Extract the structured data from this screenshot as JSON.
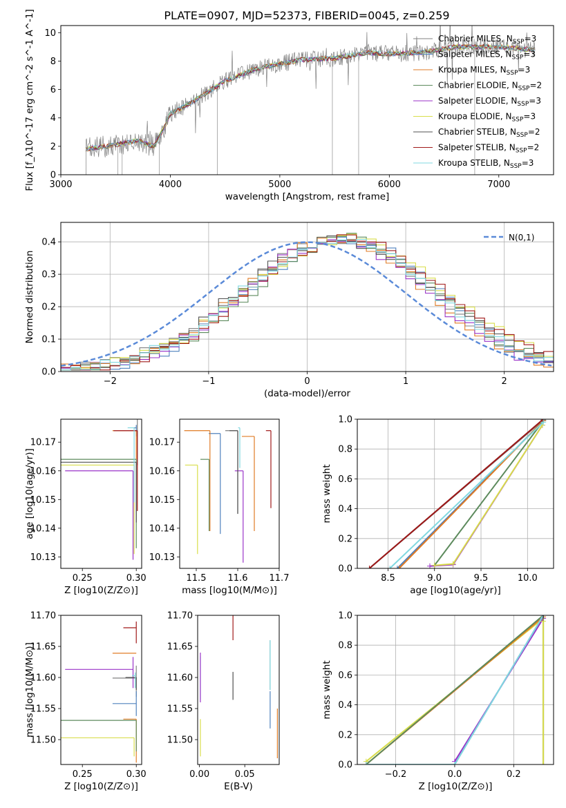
{
  "figure": {
    "title": "PLATE=0907, MJD=52373, FIBERID=0045, z=0.259"
  },
  "colors": {
    "Chabrier MILES": "#808080",
    "Salpeter MILES": "#4f81bd",
    "Kroupa MILES": "#e07b24",
    "Chabrier ELODIE": "#5c8a5c",
    "Salpeter ELODIE": "#9a32c8",
    "Kroupa ELODIE": "#d8dd4a",
    "Chabrier STELIB": "#505050",
    "Salpeter STELIB": "#a01818",
    "Kroupa STELIB": "#80d8e0",
    "gauss": "#5a8ad8"
  },
  "chart_data": [
    {
      "id": "spectrum",
      "type": "line",
      "xlabel": "wavelength [Angstrom, rest frame]",
      "ylabel": "Flux [f_λ10^-17 erg cm^-2 s^-1 A^-1]",
      "xlim": [
        3000,
        7500
      ],
      "ylim": [
        0,
        10.5
      ],
      "xticks": [
        3000,
        4000,
        5000,
        6000,
        7000
      ],
      "yticks": [
        0,
        2,
        4,
        6,
        8,
        10
      ],
      "legend_position": "top-right",
      "series": [
        {
          "name": "Chabrier MILES, N_SSP=3"
        },
        {
          "name": "Salpeter MILES, N_SSP=3"
        },
        {
          "name": "Kroupa MILES, N_SSP=3"
        },
        {
          "name": "Chabrier ELODIE, N_SSP=2"
        },
        {
          "name": "Salpeter ELODIE, N_SSP=3"
        },
        {
          "name": "Kroupa ELODIE, N_SSP=3"
        },
        {
          "name": "Chabrier STELIB, N_SSP=2"
        },
        {
          "name": "Salpeter STELIB, N_SSP=2"
        },
        {
          "name": "Kroupa STELIB, N_SSP=3"
        }
      ],
      "continuum": [
        [
          3230,
          1.8
        ],
        [
          3500,
          2.1
        ],
        [
          3700,
          2.4
        ],
        [
          3850,
          2.0
        ],
        [
          3950,
          3.4
        ],
        [
          4000,
          4.3
        ],
        [
          4200,
          5.1
        ],
        [
          4500,
          6.6
        ],
        [
          4800,
          7.5
        ],
        [
          5000,
          7.8
        ],
        [
          5200,
          8.1
        ],
        [
          5500,
          8.2
        ],
        [
          5800,
          8.6
        ],
        [
          6000,
          8.5
        ],
        [
          6300,
          8.6
        ],
        [
          6600,
          9.0
        ],
        [
          7000,
          9.0
        ],
        [
          7300,
          8.8
        ]
      ]
    },
    {
      "id": "residuals",
      "type": "line",
      "xlabel": "(data-model)/error",
      "ylabel": "Normed distribution",
      "xlim": [
        -2.5,
        2.5
      ],
      "ylim": [
        0,
        0.46
      ],
      "xticks": [
        -2,
        -1,
        0,
        1,
        2
      ],
      "yticks": [
        0.0,
        0.1,
        0.2,
        0.3,
        0.4
      ],
      "legend": "N(0,1)",
      "legend_position": "top-right",
      "grid": true
    },
    {
      "id": "age-vs-Z",
      "type": "scatter",
      "xlabel": "Z [log10(Z/Z⊙)]",
      "ylabel": "age [log10(age/yr)]",
      "xlim": [
        0.23,
        0.305
      ],
      "ylim": [
        10.126,
        10.178
      ],
      "xticks": [
        0.25,
        0.3
      ],
      "yticks": [
        10.13,
        10.14,
        10.15,
        10.16,
        10.17
      ],
      "points": [
        {
          "series": "Chabrier MILES",
          "x": 0.301,
          "y": 10.174,
          "xerr": [
            0.002,
            0.0
          ],
          "yerr": [
            0.012,
            0.004
          ]
        },
        {
          "series": "Salpeter MILES",
          "x": 0.3,
          "y": 10.175,
          "xerr": [
            0.002,
            0.0
          ],
          "yerr": [
            0.003,
            0.001
          ]
        },
        {
          "series": "Kroupa MILES",
          "x": 0.3,
          "y": 10.174,
          "xerr": [
            0.022,
            0.0
          ],
          "yerr": [
            0.01,
            0.0
          ]
        },
        {
          "series": "Chabrier ELODIE",
          "x": 0.3,
          "y": 10.164,
          "xerr": [
            0.07,
            0.0
          ],
          "yerr": [
            0.031,
            0.0
          ]
        },
        {
          "series": "Salpeter ELODIE",
          "x": 0.297,
          "y": 10.16,
          "xerr": [
            0.063,
            0.0
          ],
          "yerr": [
            0.031,
            0.0
          ]
        },
        {
          "series": "Kroupa ELODIE",
          "x": 0.298,
          "y": 10.162,
          "xerr": [
            0.07,
            0.0
          ],
          "yerr": [
            0.031,
            0.0
          ]
        },
        {
          "series": "Chabrier STELIB",
          "x": 0.3,
          "y": 10.163,
          "xerr": [
            0.07,
            0.0
          ],
          "yerr": [
            0.021,
            0.0
          ]
        },
        {
          "series": "Salpeter STELIB",
          "x": 0.301,
          "y": 10.174,
          "xerr": [
            0.022,
            0.0
          ],
          "yerr": [
            0.028,
            0.0
          ]
        },
        {
          "series": "Kroupa STELIB",
          "x": 0.298,
          "y": 10.175,
          "xerr": [
            0.006,
            0.0
          ],
          "yerr": [
            0.026,
            0.0
          ]
        }
      ]
    },
    {
      "id": "age-vs-mass",
      "type": "scatter",
      "xlabel": "mass [log10(M/M⊙)]",
      "ylabel": "",
      "xlim": [
        11.46,
        11.7
      ],
      "ylim": [
        10.126,
        10.178
      ],
      "xticks": [
        11.5,
        11.6,
        11.7
      ],
      "yticks": [
        10.13,
        10.14,
        10.15,
        10.16,
        10.17
      ],
      "points": [
        {
          "series": "Chabrier MILES",
          "x": 11.6,
          "y": 10.174,
          "xerr": [
            0.03,
            0.0
          ],
          "yerr": [
            0.029,
            0.0
          ]
        },
        {
          "series": "Salpeter MILES",
          "x": 11.558,
          "y": 10.173,
          "xerr": [
            0.028,
            0.0
          ],
          "yerr": [
            0.035,
            0.0
          ]
        },
        {
          "series": "Kroupa MILES",
          "x": 11.533,
          "y": 10.174,
          "xerr": [
            0.062,
            0.0
          ],
          "yerr": [
            0.035,
            0.0
          ]
        },
        {
          "series": "Chabrier ELODIE",
          "x": 11.531,
          "y": 10.164,
          "xerr": [
            0.021,
            0.0
          ],
          "yerr": [
            0.025,
            0.0
          ]
        },
        {
          "series": "Salpeter ELODIE",
          "x": 11.613,
          "y": 10.16,
          "xerr": [
            0.02,
            0.0
          ],
          "yerr": [
            0.032,
            0.0
          ]
        },
        {
          "series": "Kroupa ELODIE",
          "x": 11.503,
          "y": 10.162,
          "xerr": [
            0.03,
            0.0
          ],
          "yerr": [
            0.031,
            0.0
          ]
        },
        {
          "series": "Chabrier STELIB",
          "x": 11.6,
          "y": 10.174,
          "xerr": [
            0.02,
            0.0
          ],
          "yerr": [
            0.029,
            0.0
          ]
        },
        {
          "series": "Salpeter STELIB",
          "x": 11.68,
          "y": 10.174,
          "xerr": [
            0.012,
            0.0
          ],
          "yerr": [
            0.027,
            0.0
          ]
        },
        {
          "series": "Kroupa STELIB",
          "x": 11.605,
          "y": 10.175,
          "xerr": [
            0.004,
            0.0
          ],
          "yerr": [
            0.014,
            0.0
          ]
        },
        {
          "series": "Kroupa MILES",
          "x": 11.64,
          "y": 10.172,
          "xerr": [
            0.03,
            0.0
          ],
          "yerr": [
            0.033,
            0.0
          ]
        }
      ]
    },
    {
      "id": "mass-weight-vs-age",
      "type": "line",
      "xlabel": "age [log10(age/yr)]",
      "ylabel": "mass weight",
      "xlim": [
        8.17,
        10.28
      ],
      "ylim": [
        0,
        1.0
      ],
      "xticks": [
        8.5,
        9.0,
        9.5,
        10.0
      ],
      "yticks": [
        0.0,
        0.2,
        0.4,
        0.6,
        0.8,
        1.0
      ],
      "grid": true,
      "series": [
        {
          "key": "Chabrier MILES",
          "x": [
            8.3,
            10.17
          ],
          "y": [
            0.0,
            0.995
          ]
        },
        {
          "key": "Salpeter MILES",
          "x": [
            8.6,
            10.17
          ],
          "y": [
            0.0,
            0.99
          ]
        },
        {
          "key": "Kroupa MILES",
          "x": [
            8.62,
            10.17
          ],
          "y": [
            0.0,
            0.99
          ]
        },
        {
          "key": "Chabrier ELODIE",
          "x": [
            9.0,
            10.16
          ],
          "y": [
            0.02,
            0.98
          ]
        },
        {
          "key": "Salpeter ELODIE",
          "x": [
            8.95,
            9.2,
            10.16
          ],
          "y": [
            0.015,
            0.025,
            0.96
          ]
        },
        {
          "key": "Kroupa ELODIE",
          "x": [
            9.0,
            9.2,
            10.16
          ],
          "y": [
            0.02,
            0.03,
            0.96
          ]
        },
        {
          "key": "Chabrier STELIB",
          "x": [
            8.3,
            10.17
          ],
          "y": [
            0.0,
            1.0
          ]
        },
        {
          "key": "Salpeter STELIB",
          "x": [
            8.3,
            10.17
          ],
          "y": [
            0.0,
            1.0
          ]
        },
        {
          "key": "Kroupa STELIB",
          "x": [
            8.52,
            10.17
          ],
          "y": [
            0.0,
            0.98
          ]
        }
      ]
    },
    {
      "id": "mass-vs-Z",
      "type": "scatter",
      "xlabel": "Z [log10(Z/Z⊙)]",
      "ylabel": "mass [log10(M/M⊙)]",
      "xlim": [
        0.23,
        0.305
      ],
      "ylim": [
        11.46,
        11.7
      ],
      "xticks": [
        0.25,
        0.3
      ],
      "yticks": [
        11.5,
        11.55,
        11.6,
        11.65,
        11.7
      ],
      "points": [
        {
          "series": "Chabrier MILES",
          "x": 0.3,
          "y": 11.599,
          "xerr": [
            0.022,
            0.0
          ],
          "yerr": [
            0.03,
            0.02
          ]
        },
        {
          "series": "Salpeter MILES",
          "x": 0.3,
          "y": 11.558,
          "xerr": [
            0.022,
            0.0
          ],
          "yerr": [
            0.02,
            0.02
          ]
        },
        {
          "series": "Kroupa MILES",
          "x": 0.3,
          "y": 11.533,
          "xerr": [
            0.012,
            0.0
          ],
          "yerr": [
            0.07,
            0.0
          ]
        },
        {
          "series": "Chabrier ELODIE",
          "x": 0.3,
          "y": 11.531,
          "xerr": [
            0.07,
            0.0
          ],
          "yerr": [
            0.05,
            0.0
          ]
        },
        {
          "series": "Salpeter ELODIE",
          "x": 0.297,
          "y": 11.613,
          "xerr": [
            0.063,
            0.0
          ],
          "yerr": [
            0.03,
            0.02
          ]
        },
        {
          "series": "Kroupa ELODIE",
          "x": 0.298,
          "y": 11.503,
          "xerr": [
            0.07,
            0.0
          ],
          "yerr": [
            0.03,
            0.0
          ]
        },
        {
          "series": "Chabrier STELIB",
          "x": 0.3,
          "y": 11.6,
          "xerr": [
            0.01,
            0.0
          ],
          "yerr": [
            0.02,
            0.0
          ]
        },
        {
          "series": "Salpeter STELIB",
          "x": 0.3,
          "y": 11.68,
          "xerr": [
            0.012,
            0.0
          ],
          "yerr": [
            0.025,
            0.01
          ]
        },
        {
          "series": "Kroupa STELIB",
          "x": 0.299,
          "y": 11.603,
          "xerr": [
            0.003,
            0.0
          ],
          "yerr": [
            0.02,
            0.005
          ]
        },
        {
          "series": "Kroupa MILES",
          "x": 0.3,
          "y": 11.639,
          "xerr": [
            0.022,
            0.0
          ],
          "yerr": [
            0.0,
            0.0
          ]
        }
      ]
    },
    {
      "id": "mass-vs-EBV",
      "type": "scatter",
      "xlabel": "E(B-V)",
      "ylabel": "",
      "xlim": [
        -0.002,
        0.088
      ],
      "ylim": [
        11.46,
        11.7
      ],
      "xticks": [
        0.0,
        0.05
      ],
      "yticks": [
        11.5,
        11.55,
        11.6,
        11.65,
        11.7
      ],
      "points": [
        {
          "series": "Kroupa STELIB",
          "x": 0.001,
          "y": 11.599,
          "yerr": [
            0.035,
            0.035
          ]
        },
        {
          "series": "Salpeter ELODIE",
          "x": 0.001,
          "y": 11.61,
          "yerr": [
            0.05,
            0.03
          ]
        },
        {
          "series": "Kroupa ELODIE",
          "x": 0.001,
          "y": 11.503,
          "yerr": [
            0.03,
            0.03
          ]
        },
        {
          "series": "Salpeter STELIB",
          "x": 0.037,
          "y": 11.68,
          "yerr": [
            0.02,
            0.02
          ]
        },
        {
          "series": "Chabrier STELIB",
          "x": 0.037,
          "y": 11.589,
          "yerr": [
            0.025,
            0.02
          ]
        },
        {
          "series": "Salpeter MILES",
          "x": 0.078,
          "y": 11.548,
          "yerr": [
            0.03,
            0.03
          ]
        },
        {
          "series": "Kroupa MILES",
          "x": 0.086,
          "y": 11.51,
          "yerr": [
            0.04,
            0.04
          ]
        },
        {
          "series": "Chabrier MILES",
          "x": 0.078,
          "y": 11.62,
          "yerr": [
            0.04,
            0.04
          ]
        },
        {
          "series": "Kroupa STELIB",
          "x": 0.078,
          "y": 11.62,
          "yerr": [
            0.04,
            0.04
          ]
        }
      ]
    },
    {
      "id": "mass-weight-vs-Z",
      "type": "line",
      "xlabel": "Z [log10(Z/Z⊙)]",
      "ylabel": "mass weight",
      "xlim": [
        -0.33,
        0.335
      ],
      "ylim": [
        0,
        1.0
      ],
      "xticks": [
        -0.2,
        0.0,
        0.2
      ],
      "yticks": [
        0.0,
        0.2,
        0.4,
        0.6,
        0.8,
        1.0
      ],
      "grid": true,
      "series": [
        {
          "key": "Kroupa ELODIE",
          "x": [
            -0.3,
            0.3
          ],
          "y": [
            0.02,
            0.98
          ]
        },
        {
          "key": "Kroupa MILES",
          "x": [
            -0.3,
            0.3
          ],
          "y": [
            0.0,
            0.99
          ]
        },
        {
          "key": "Chabrier ELODIE",
          "x": [
            -0.3,
            0.3
          ],
          "y": [
            0.0,
            1.0
          ]
        },
        {
          "key": "Salpeter ELODIE",
          "x": [
            0.0,
            0.3
          ],
          "y": [
            0.02,
            0.98
          ]
        },
        {
          "key": "Salpeter MILES",
          "x": [
            0.0,
            0.3
          ],
          "y": [
            0.0,
            1.0
          ]
        },
        {
          "key": "Kroupa STELIB",
          "x": [
            -0.3,
            0.0,
            0.3
          ],
          "y": [
            0.0,
            0.0,
            1.0
          ]
        },
        {
          "key": "Chabrier STELIB",
          "x": [
            0.3,
            0.3
          ],
          "y": [
            0.0,
            1.0
          ]
        },
        {
          "key": "Kroupa ELODIE",
          "x": [
            0.3,
            0.3
          ],
          "y": [
            0.0,
            0.96
          ]
        }
      ]
    }
  ]
}
